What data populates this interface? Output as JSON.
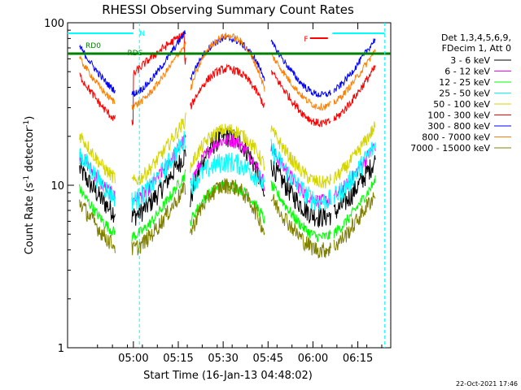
{
  "chart_data": {
    "type": "line",
    "title": "RHESSI Observing Summary Count Rates",
    "xlabel": "Start Time (16-Jan-13 04:48:02)",
    "ylabel_main": "Count Rate (s",
    "ylabel_sup": "-1",
    "ylabel_mid": " detector",
    "ylabel_sup2": "-1",
    "ylabel_end": ")",
    "yscale": "log",
    "ylim": [
      1,
      100
    ],
    "xlim_minutes": [
      -10,
      98
    ],
    "x_ticks": [
      {
        "minute": 12,
        "label": "05:00"
      },
      {
        "minute": 27,
        "label": "05:15"
      },
      {
        "minute": 42,
        "label": "05:30"
      },
      {
        "minute": 57,
        "label": "05:45"
      },
      {
        "minute": 72,
        "label": "06:00"
      },
      {
        "minute": 87,
        "label": "06:15"
      }
    ],
    "y_ticks": [
      {
        "value": 1,
        "label": "1"
      },
      {
        "value": 10,
        "label": "10"
      },
      {
        "value": 100,
        "label": "100"
      }
    ],
    "legend_header": [
      "Det 1,3,4,5,6,9,",
      "FDecim 1, Att 0"
    ],
    "series": [
      {
        "name": "3 - 6 keV",
        "color": "#000000"
      },
      {
        "name": "6 - 12 keV",
        "color": "#ff00ff"
      },
      {
        "name": "12 - 25 keV",
        "color": "#00ff00"
      },
      {
        "name": "25 - 50 keV",
        "color": "#00ffff"
      },
      {
        "name": "50 - 100 keV",
        "color": "#d4d400"
      },
      {
        "name": "100 - 300 keV",
        "color": "#ff0000"
      },
      {
        "name": "300 - 800 keV",
        "color": "#0000ff"
      },
      {
        "name": "800 - 7000 keV",
        "color": "#ff8000"
      },
      {
        "name": "7000 - 15000 keV",
        "color": "#808000"
      }
    ],
    "annotations": [
      {
        "text": "N",
        "color": "#00ffff"
      },
      {
        "text": "RD0",
        "color": "#008000"
      },
      {
        "text": "RDS",
        "color": "#008000"
      },
      {
        "text": "F",
        "color": "#ff0000"
      }
    ]
  },
  "footer_date": "22-Oct-2021 17:46"
}
